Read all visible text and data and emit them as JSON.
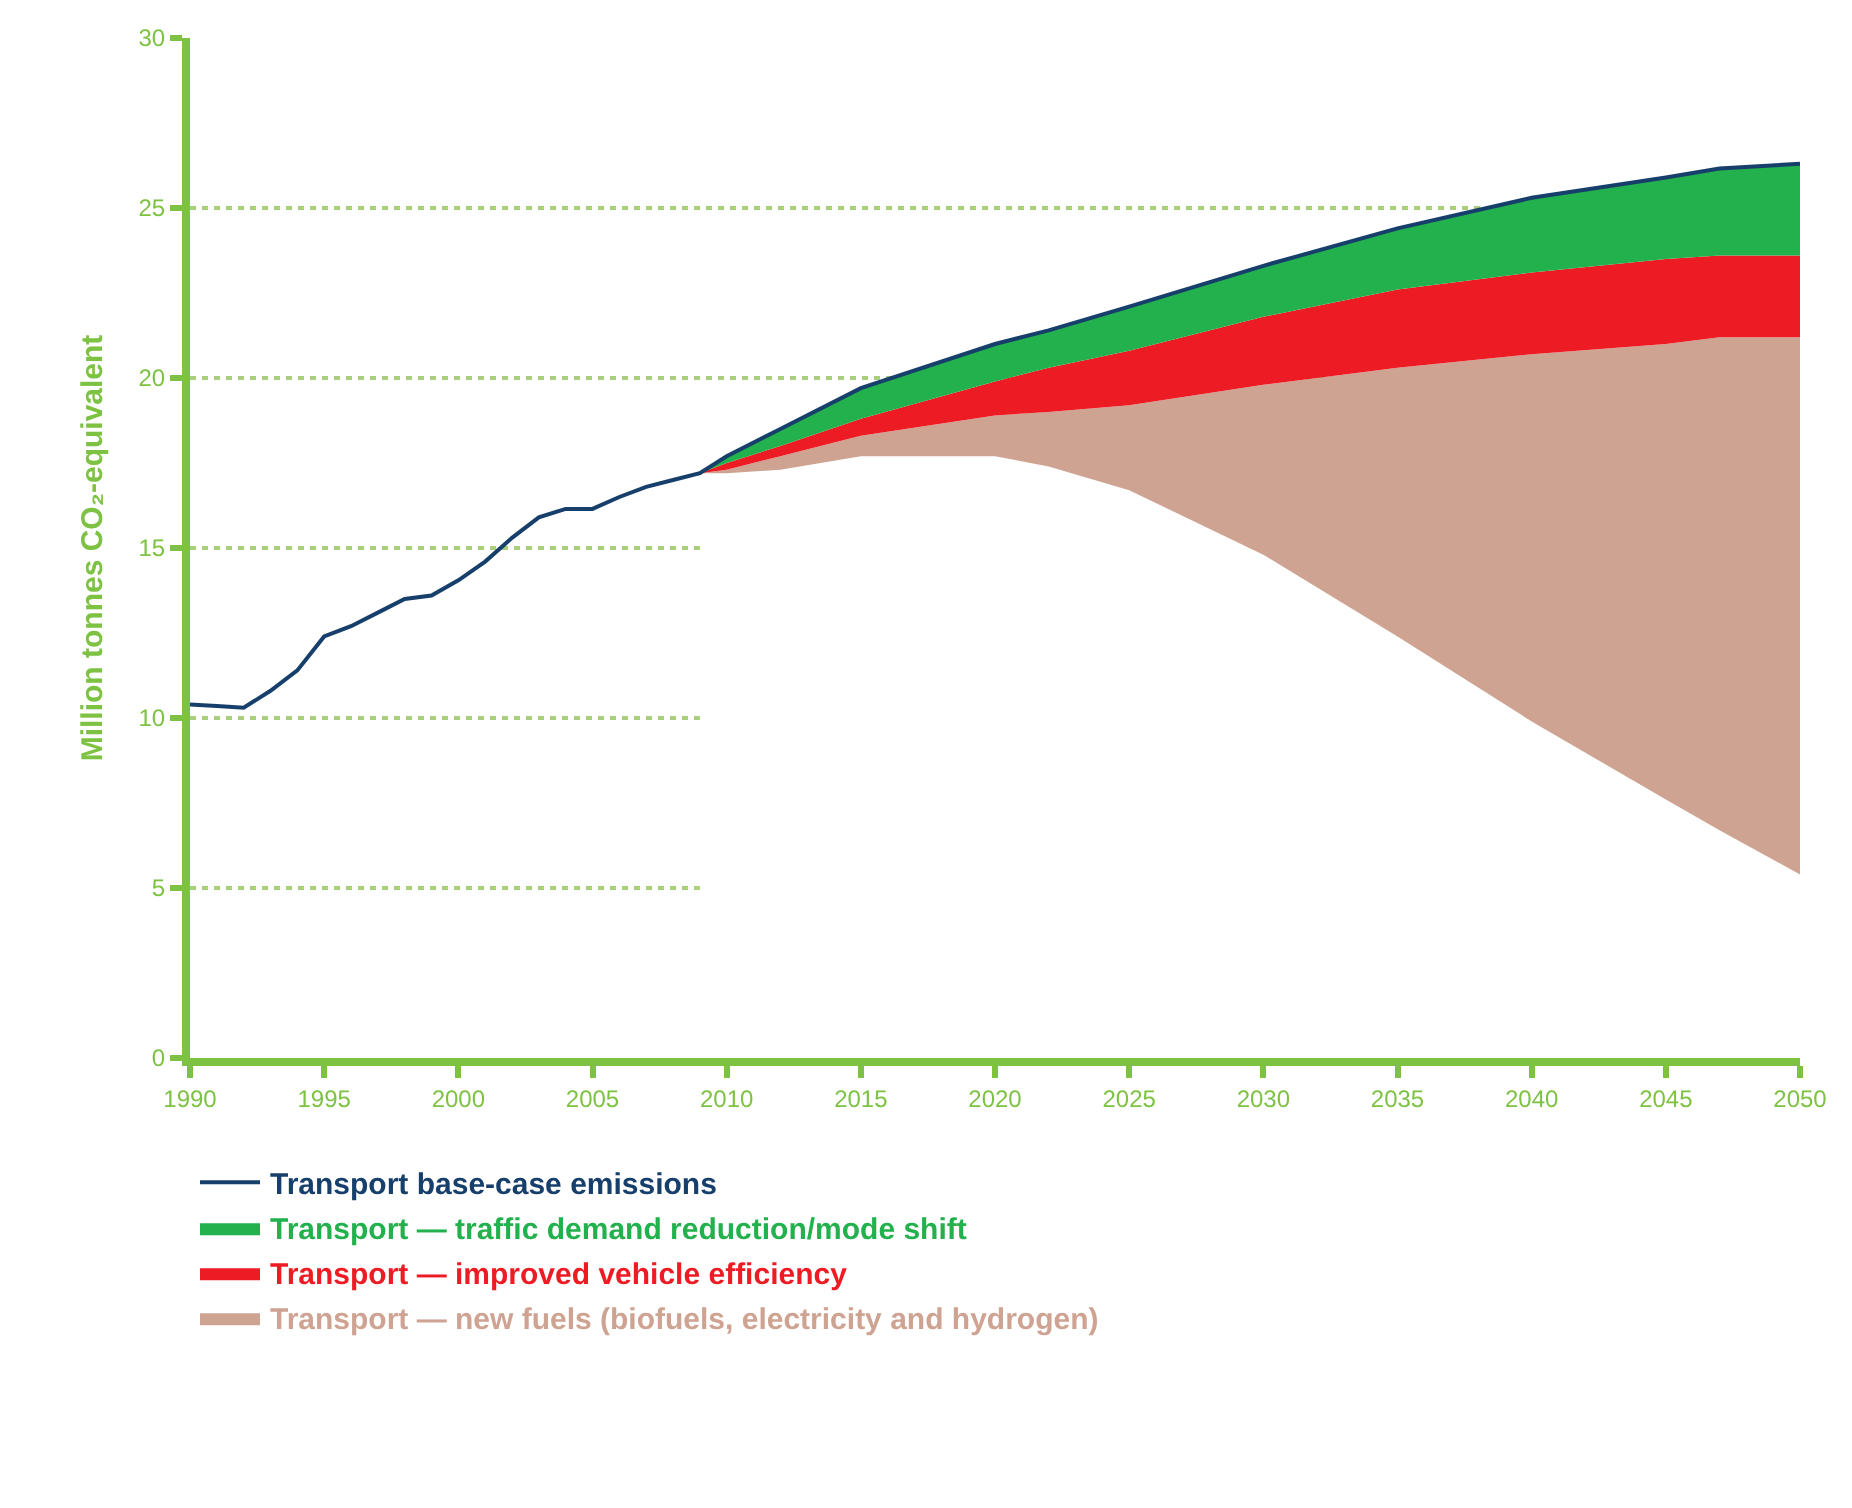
{
  "chart_data": {
    "type": "area",
    "stacked": true,
    "ylabel": "Million tonnes CO₂-equivalent",
    "xlim": [
      1990,
      2050
    ],
    "xticks": [
      1990,
      1995,
      2000,
      2005,
      2010,
      2015,
      2020,
      2025,
      2030,
      2035,
      2040,
      2045,
      2050
    ],
    "ylim": [
      0,
      30
    ],
    "yticks": [
      0,
      5,
      10,
      15,
      20,
      25,
      30
    ],
    "grid": "y",
    "legend": "bottom",
    "x": [
      2009,
      2010,
      2012,
      2015,
      2020,
      2022,
      2025,
      2030,
      2035,
      2040,
      2045,
      2047,
      2050
    ],
    "series": [
      {
        "name": "Transport base-case emissions",
        "type": "line",
        "color": "#173f6b",
        "x": [
          1990,
          1991,
          1992,
          1993,
          1994,
          1995,
          1996,
          1997,
          1998,
          1999,
          2000,
          2001,
          2002,
          2003,
          2004,
          2005,
          2006,
          2007,
          2008,
          2009,
          2010,
          2012,
          2015,
          2020,
          2022,
          2025,
          2030,
          2035,
          2040,
          2045,
          2047,
          2050
        ],
        "values": [
          10.4,
          10.35,
          10.3,
          10.8,
          11.4,
          12.4,
          12.7,
          13.1,
          13.5,
          13.6,
          14.05,
          14.6,
          15.3,
          15.9,
          16.15,
          16.15,
          16.5,
          16.8,
          17.0,
          17.2,
          17.7,
          18.5,
          19.7,
          21.0,
          21.4,
          22.1,
          23.3,
          24.4,
          25.3,
          25.9,
          26.16,
          26.3
        ]
      },
      {
        "color": "#ffffff",
        "values": [
          17.2,
          17.2,
          17.3,
          17.7,
          17.7,
          17.4,
          16.7,
          14.8,
          12.4,
          9.9,
          7.6,
          6.7,
          5.4
        ]
      },
      {
        "name": "Transport — new fuels (biofuels, electricity and hydrogen)",
        "color": "#cfa392",
        "values": [
          0,
          0.1,
          0.4,
          0.6,
          1.2,
          1.6,
          2.5,
          5.0,
          7.9,
          10.8,
          13.4,
          14.5,
          15.8
        ]
      },
      {
        "name": "Transport — improved vehicle efficiency",
        "color": "#ed1c24",
        "values": [
          0,
          0.2,
          0.3,
          0.5,
          1.0,
          1.3,
          1.6,
          2.0,
          2.3,
          2.4,
          2.5,
          2.4,
          2.4
        ]
      },
      {
        "name": "Transport — traffic demand reduction/mode shift",
        "color": "#22b14c",
        "values": [
          0,
          0.2,
          0.5,
          0.9,
          1.1,
          1.1,
          1.3,
          1.5,
          1.8,
          2.2,
          2.4,
          2.56,
          2.7
        ]
      }
    ]
  }
}
